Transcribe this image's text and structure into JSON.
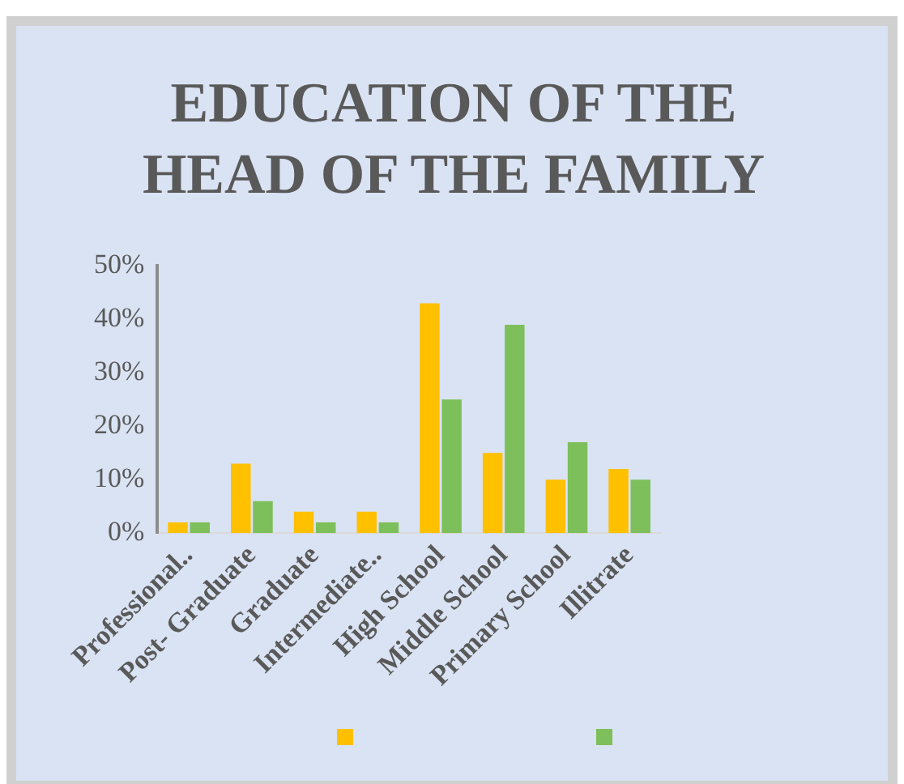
{
  "chart_data": {
    "type": "bar",
    "title": "EDUCATION OF THE HEAD OF THE FAMILY",
    "categories": [
      "Professional..",
      "Post- Graduate",
      "Graduate",
      "Intermediate..",
      "High School",
      "Middle School",
      "Primary School",
      "Illitrate"
    ],
    "series": [
      {
        "color": "#ffc000",
        "values": [
          2,
          13,
          4,
          4,
          43,
          15,
          10,
          12
        ]
      },
      {
        "color": "#7dbf5a",
        "values": [
          2,
          6,
          2,
          2,
          25,
          39,
          17,
          10
        ]
      }
    ],
    "ylim": [
      0,
      50
    ],
    "yticks": [
      {
        "value": 0,
        "label": "0%"
      },
      {
        "value": 10,
        "label": "10%"
      },
      {
        "value": 20,
        "label": "20%"
      },
      {
        "value": 30,
        "label": "30%"
      },
      {
        "value": 40,
        "label": "40%"
      },
      {
        "value": 50,
        "label": "50%"
      }
    ],
    "grid": false
  }
}
